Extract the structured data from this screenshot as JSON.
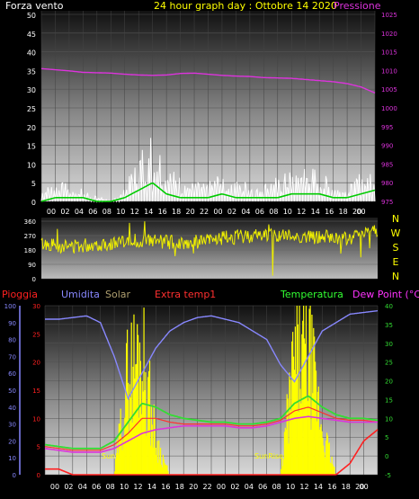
{
  "header": {
    "left_label": "Forza vento",
    "title": "24 hour graph day : Ottobre 14 2020",
    "right_label": "Pressione"
  },
  "colors": {
    "wind": "#ffffff",
    "gust": "#c8c8c8",
    "wind_avg": "#00cc00",
    "pressure": "#dd33dd",
    "direction": "#eeee00",
    "rain": "#ff2020",
    "humidity": "#8888ff",
    "solar": "#ffff00",
    "temperature": "#33dd33",
    "dewpoint": "#dd33dd",
    "extra": "#ff3030"
  },
  "wind_axis_ticks": [
    "0",
    "5",
    "10",
    "15",
    "20",
    "25",
    "30",
    "35",
    "40",
    "45",
    "50"
  ],
  "pressure_axis_ticks": [
    "975",
    "980",
    "985",
    "990",
    "995",
    "1000",
    "1005",
    "1010",
    "1015",
    "1020",
    "1025"
  ],
  "hour_labels": [
    "00",
    "02",
    "04",
    "06",
    "08",
    "10",
    "12",
    "14",
    "16",
    "18",
    "20",
    "22",
    "00",
    "02",
    "04",
    "06",
    "08",
    "10",
    "12",
    "14",
    "16",
    "18",
    "20",
    "00"
  ],
  "direction_axis_ticks": [
    "360",
    "270",
    "180",
    "90",
    "0"
  ],
  "compass_labels": [
    "N",
    "W",
    "S",
    "E",
    "N"
  ],
  "bottom_legend": {
    "rain": "Pioggia",
    "humidity": "Umidita",
    "solar": "Solar",
    "extra": "Extra temp1",
    "temperature": "Temperatura",
    "dewpoint": "Dew Point (°C)"
  },
  "humidity_axis_ticks": [
    "0",
    "10",
    "20",
    "30",
    "40",
    "50",
    "60",
    "70",
    "80",
    "90",
    "100"
  ],
  "rain_axis_ticks": [
    "0",
    "5",
    "10",
    "15",
    "20",
    "25",
    "30"
  ],
  "temp_axis_ticks": [
    "-5",
    "0",
    "5",
    "10",
    "15",
    "20",
    "25",
    "30",
    "35",
    "40"
  ],
  "bottom_hour_labels": [
    "00",
    "02",
    "04",
    "06",
    "08",
    "10",
    "12",
    "14",
    "16",
    "18",
    "20",
    "22",
    "00",
    "02",
    "04",
    "06",
    "08",
    "10",
    "12",
    "14",
    "16",
    "18",
    "20",
    "00"
  ],
  "sunrise_labels": [
    "SunRise",
    "SunRise"
  ],
  "chart_data": {
    "type": "line",
    "title": "24 hour graph day : Ottobre 14 2020",
    "panels": [
      {
        "name": "wind_pressure",
        "x": [
          0,
          2,
          4,
          6,
          8,
          10,
          12,
          14,
          16,
          18,
          20,
          22,
          24,
          26,
          28,
          30,
          32,
          34,
          36,
          38,
          40,
          42,
          44,
          46,
          48
        ],
        "series": [
          {
            "name": "Pressione",
            "values": [
              1010.5,
              1010.2,
              1009.9,
              1009.5,
              1009.4,
              1009.3,
              1009.0,
              1008.8,
              1008.7,
              1008.8,
              1009.2,
              1009.3,
              1009.0,
              1008.7,
              1008.5,
              1008.4,
              1008.1,
              1008.0,
              1007.9,
              1007.6,
              1007.3,
              1007.0,
              1006.5,
              1005.6,
              1004.0
            ]
          },
          {
            "name": "Forza vento",
            "values": [
              2,
              3,
              3,
              2,
              1,
              0,
              2,
              8,
              12,
              6,
              4,
              3,
              3,
              5,
              4,
              3,
              3,
              4,
              5,
              6,
              5,
              3,
              2,
              5,
              6
            ]
          },
          {
            "values": [
              0,
              1,
              1,
              1,
              0,
              0,
              1,
              3,
              5,
              2,
              1,
              1,
              1,
              2,
              1,
              1,
              1,
              1,
              2,
              2,
              2,
              1,
              1,
              2,
              3
            ]
          }
        ],
        "ylim_left": [
          0,
          50
        ],
        "ylim_right": [
          975,
          1025
        ]
      },
      {
        "name": "wind_direction",
        "x": [
          0,
          2,
          4,
          6,
          8,
          10,
          12,
          14,
          16,
          18,
          20,
          22,
          24,
          26,
          28,
          30,
          32,
          34,
          36,
          38,
          40,
          42,
          44,
          46,
          48
        ],
        "series": [
          {
            "values": [
              220,
              210,
              200,
              210,
              215,
              220,
              230,
              240,
              235,
              230,
              225,
              230,
              240,
              255,
              260,
              270,
              275,
              270,
              265,
              260,
              260,
              250,
              245,
              300,
              310
            ]
          }
        ],
        "ylim": [
          0,
          360
        ]
      },
      {
        "name": "temp_humidity",
        "x": [
          0,
          2,
          4,
          6,
          8,
          10,
          12,
          14,
          16,
          18,
          20,
          22,
          24,
          26,
          28,
          30,
          32,
          34,
          36,
          38,
          40,
          42,
          44,
          46,
          48
        ],
        "series": [
          {
            "name": "Umidita",
            "values": [
              92,
              92,
              93,
              94,
              90,
              70,
              45,
              60,
              75,
              85,
              90,
              93,
              94,
              92,
              90,
              85,
              80,
              65,
              55,
              70,
              85,
              90,
              95,
              96,
              97
            ]
          },
          {
            "name": "Temperatura",
            "values": [
              3,
              2.5,
              2,
              2,
              2,
              4,
              9,
              14,
              13,
              11,
              10,
              9.5,
              9,
              9,
              8.5,
              8.5,
              9,
              10,
              14,
              16,
              13,
              11,
              10,
              10,
              9.5
            ]
          },
          {
            "name": "Dew Point (°C)",
            "values": [
              2,
              1.5,
              1,
              1,
              1,
              2,
              4,
              6,
              7,
              7.5,
              8,
              8,
              8,
              8,
              7.5,
              7.5,
              8,
              9,
              10,
              10.5,
              10,
              9.5,
              9,
              9,
              9
            ]
          },
          {
            "name": "Extra temp1",
            "values": [
              2.5,
              2,
              1.5,
              1.5,
              1.5,
              3,
              6,
              10,
              10,
              9,
              8.5,
              8.5,
              8.5,
              8.5,
              8,
              8,
              8.5,
              9.5,
              12,
              13,
              11.5,
              10,
              9.5,
              9.5,
              9
            ]
          },
          {
            "name": "Solar",
            "values": [
              0,
              0,
              0,
              0,
              0,
              0,
              18,
              22,
              6,
              0,
              0,
              0,
              0,
              0,
              0,
              0,
              0,
              0,
              20,
              22,
              8,
              0,
              0,
              0,
              0
            ]
          },
          {
            "name": "Pioggia",
            "values": [
              1,
              1,
              0,
              0,
              0,
              0,
              0,
              0,
              0,
              0,
              0,
              0,
              0,
              0,
              0,
              0,
              0,
              0,
              0,
              0,
              0,
              0,
              2,
              6,
              8
            ]
          }
        ],
        "ylim_left": [
          0,
          100
        ],
        "ylim_rain": [
          0,
          30
        ],
        "ylim_right": [
          -5,
          40
        ]
      }
    ]
  }
}
